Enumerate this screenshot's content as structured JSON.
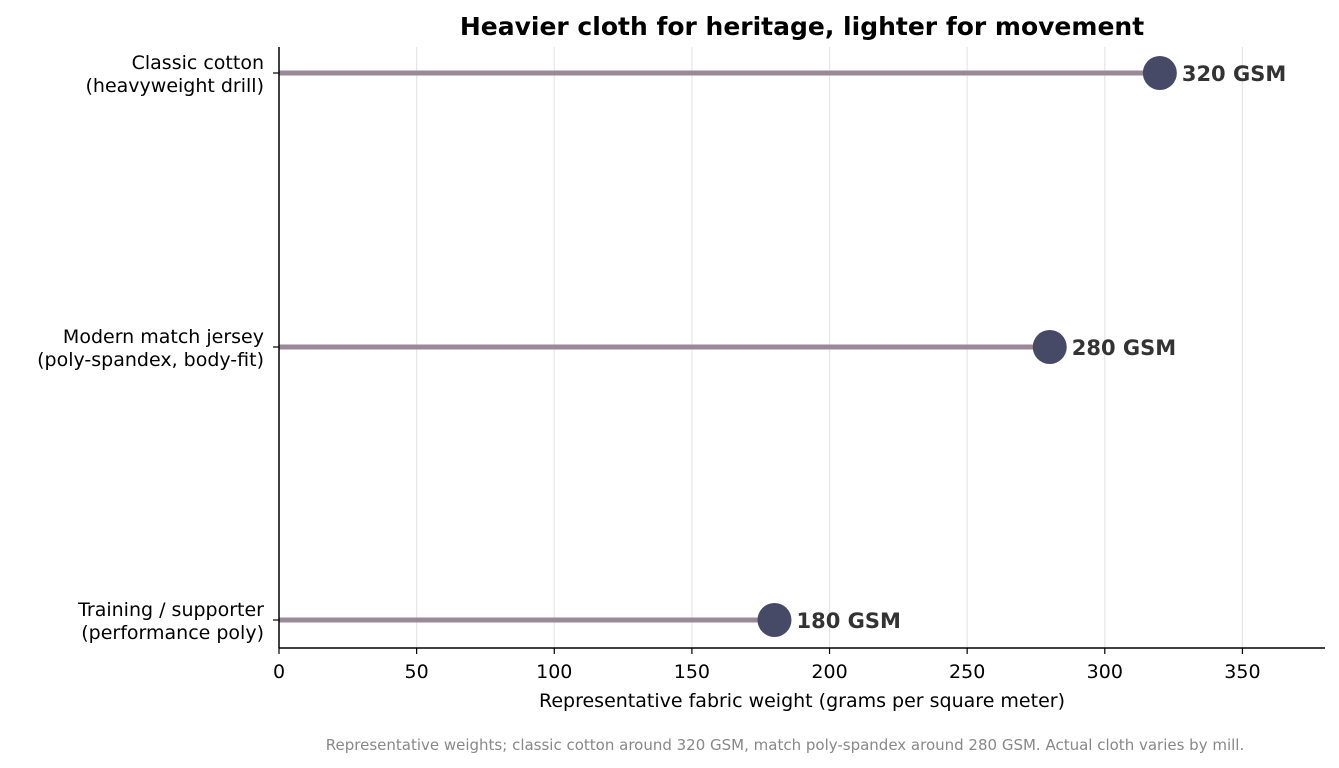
{
  "chart_data": {
    "type": "lollipop",
    "title": "Heavier cloth for heritage, lighter for movement",
    "xlabel": "Representative fabric weight (grams per square meter)",
    "ylabel": "",
    "xlim": [
      0,
      380
    ],
    "xticks": [
      0,
      50,
      100,
      150,
      200,
      250,
      300,
      350
    ],
    "grid": "vertical",
    "orientation": "horizontal",
    "categories": [
      [
        "Classic cotton",
        "(heavyweight drill)"
      ],
      [
        "Modern match jersey",
        "(poly-spandex, body-fit)"
      ],
      [
        "Training / supporter",
        "(performance poly)"
      ]
    ],
    "values": [
      320,
      280,
      180
    ],
    "value_labels": [
      "320 GSM",
      "280 GSM",
      "180 GSM"
    ],
    "footnote": "Representative weights; classic cotton around 320 GSM, match poly-spandex around 280 GSM. Actual cloth varies by mill."
  },
  "colors": {
    "stem": "#9a8a98",
    "marker": "#474a66",
    "grid": "#e6e6e6",
    "axis": "#000000",
    "label": "#333333",
    "footnote": "#888888"
  }
}
